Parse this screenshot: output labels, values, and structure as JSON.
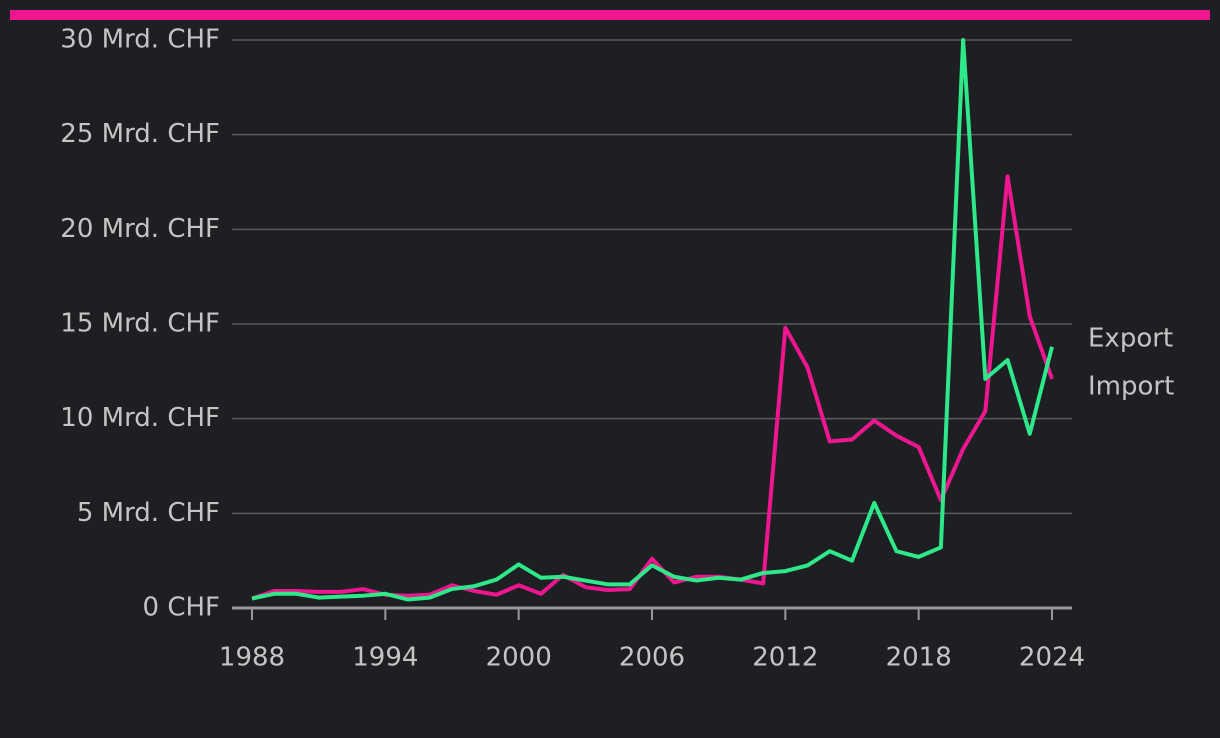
{
  "chart_data": {
    "type": "line",
    "x": [
      1988,
      1989,
      1990,
      1991,
      1992,
      1993,
      1994,
      1995,
      1996,
      1997,
      1998,
      1999,
      2000,
      2001,
      2002,
      2003,
      2004,
      2005,
      2006,
      2007,
      2008,
      2009,
      2010,
      2011,
      2012,
      2013,
      2014,
      2015,
      2016,
      2017,
      2018,
      2019,
      2020,
      2021,
      2022,
      2023,
      2024
    ],
    "series": [
      {
        "name": "Import",
        "color": "#f0168f",
        "values": [
          0.5,
          0.9,
          0.9,
          0.85,
          0.85,
          1.0,
          0.7,
          0.65,
          0.7,
          1.2,
          0.9,
          0.7,
          1.2,
          0.75,
          1.75,
          1.1,
          0.95,
          1.0,
          2.6,
          1.35,
          1.65,
          1.65,
          1.5,
          1.3,
          14.8,
          12.7,
          8.8,
          8.9,
          9.9,
          9.1,
          8.5,
          5.7,
          8.4,
          10.4,
          22.8,
          15.4,
          12.1
        ]
      },
      {
        "name": "Export",
        "color": "#2ee88a",
        "values": [
          0.5,
          0.75,
          0.75,
          0.55,
          0.6,
          0.65,
          0.75,
          0.45,
          0.55,
          1.0,
          1.15,
          1.5,
          2.3,
          1.6,
          1.65,
          1.45,
          1.25,
          1.25,
          2.25,
          1.65,
          1.45,
          1.6,
          1.5,
          1.85,
          1.95,
          2.25,
          3.0,
          2.5,
          5.55,
          3.0,
          2.7,
          3.2,
          30.0,
          12.1,
          13.1,
          9.2,
          13.8
        ]
      }
    ],
    "xlim": [
      1987.1,
      2024.9
    ],
    "xticks": [
      1988,
      1994,
      2000,
      2006,
      2012,
      2018,
      2024
    ],
    "ylim": [
      0,
      30
    ],
    "yticks": [
      {
        "value": 0,
        "label": "0 CHF"
      },
      {
        "value": 5,
        "label": "5 Mrd. CHF"
      },
      {
        "value": 10,
        "label": "10 Mrd. CHF"
      },
      {
        "value": 15,
        "label": "15 Mrd. CHF"
      },
      {
        "value": 20,
        "label": "20 Mrd. CHF"
      },
      {
        "value": 25,
        "label": "25 Mrd. CHF"
      },
      {
        "value": 30,
        "label": "30 Mrd. CHF"
      }
    ],
    "grid": true
  }
}
